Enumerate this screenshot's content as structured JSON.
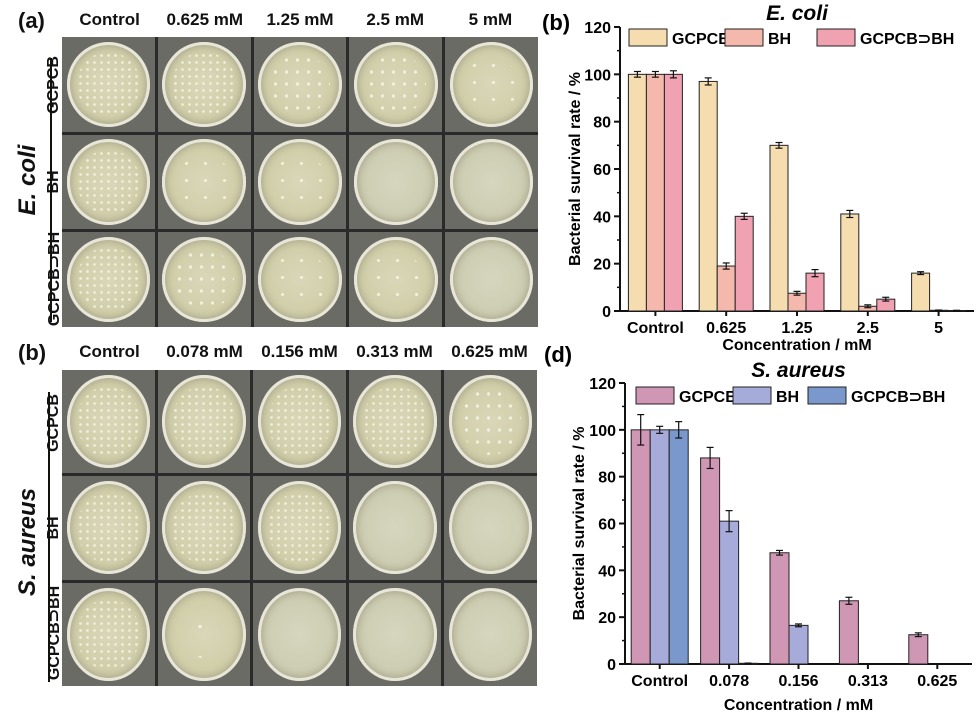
{
  "panel_a": {
    "label": "(a)",
    "columns": [
      "Control",
      "0.625 mM",
      "1.25 mM",
      "2.5 mM",
      "5 mM"
    ],
    "rows": [
      "GCPCB",
      "BH",
      "GCPCB⊃BH"
    ],
    "species": "E. coli",
    "growth": [
      [
        "dense",
        "dense",
        "med",
        "med",
        "sparse"
      ],
      [
        "dense",
        "sparse",
        "sparse",
        "empty",
        "empty"
      ],
      [
        "dense",
        "med",
        "sparse",
        "sparse",
        "empty"
      ]
    ]
  },
  "panel_c": {
    "label": "(b)",
    "columns": [
      "Control",
      "0.078 mM",
      "0.156 mM",
      "0.313 mM",
      "0.625 mM"
    ],
    "rows": [
      "GCPCB",
      "BH",
      "GCPCB⊃BH"
    ],
    "species": "S. aureus",
    "growth": [
      [
        "dense",
        "dense",
        "dense",
        "dense",
        "med"
      ],
      [
        "dense",
        "dense",
        "dense",
        "empty",
        "empty"
      ],
      [
        "dense",
        "few",
        "empty",
        "empty",
        "empty"
      ]
    ]
  },
  "chart_data": [
    {
      "panel": "(b)",
      "type": "bar",
      "title": "E. coli",
      "xlabel": "Concentration / mM",
      "ylabel": "Bacterial survival rate / %",
      "ylim": [
        0,
        120
      ],
      "yticks": [
        0,
        20,
        40,
        60,
        80,
        100,
        120
      ],
      "categories": [
        "Control",
        "0.625",
        "1.25",
        "2.5",
        "5"
      ],
      "legend_position": "top",
      "series": [
        {
          "name": "GCPCB",
          "color": "#f5ddb0",
          "values": [
            100,
            97,
            70,
            41,
            16
          ],
          "errors": [
            1.2,
            1.5,
            1.2,
            1.5,
            0.6
          ]
        },
        {
          "name": "BH",
          "color": "#f5b8ac",
          "values": [
            100,
            19,
            7.5,
            2,
            0.3
          ],
          "errors": [
            1.2,
            1.3,
            0.8,
            0.6,
            0.1
          ]
        },
        {
          "name": "GCPCB⊃BH",
          "color": "#f0a2b2",
          "values": [
            100,
            40,
            16,
            5,
            0.2
          ],
          "errors": [
            1.5,
            1.3,
            1.5,
            0.8,
            0.1
          ]
        }
      ]
    },
    {
      "panel": "(d)",
      "type": "bar",
      "title": "S. aureus",
      "xlabel": "Concentration / mM",
      "ylabel": "Bacterial survival rate / %",
      "ylim": [
        0,
        120
      ],
      "yticks": [
        0,
        20,
        40,
        60,
        80,
        100,
        120
      ],
      "categories": [
        "Control",
        "0.078",
        "0.156",
        "0.313",
        "0.625"
      ],
      "legend_position": "top",
      "series": [
        {
          "name": "GCPCB",
          "color": "#cf97b4",
          "values": [
            100,
            88,
            47.5,
            27,
            12.5
          ],
          "errors": [
            6.5,
            4.5,
            1.0,
            1.5,
            0.8
          ]
        },
        {
          "name": "BH",
          "color": "#a7abd9",
          "values": [
            100,
            61,
            16.5,
            0,
            0
          ],
          "errors": [
            1.5,
            4.5,
            0.6,
            0,
            0
          ]
        },
        {
          "name": "GCPCB⊃BH",
          "color": "#7b98cc",
          "values": [
            100,
            0.3,
            0,
            0,
            0
          ],
          "errors": [
            3.5,
            0.1,
            0,
            0,
            0
          ]
        }
      ]
    }
  ]
}
